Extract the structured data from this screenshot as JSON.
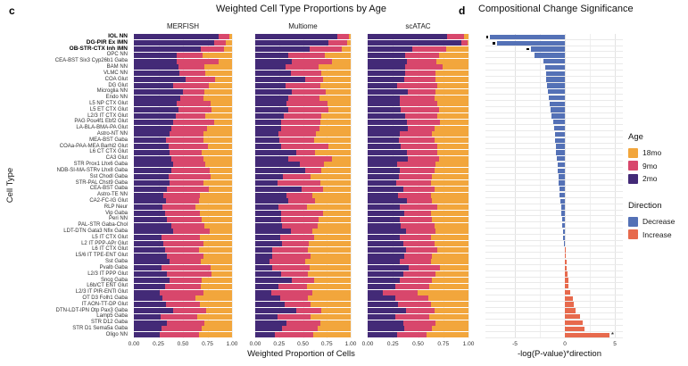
{
  "figure": {
    "panel_c_letter": "c",
    "panel_d_letter": "d",
    "panel_c_title": "Weighted Cell Type Proportions by Age",
    "panel_d_title": "Compositional Change Significance",
    "y_axis_label": "Cell Type",
    "panel_c_x_label": "Weighted Proportion of Cells",
    "panel_d_x_label": "-log(P-value)*direction"
  },
  "legend": {
    "age_title": "Age",
    "age_items": [
      {
        "label": "18mo",
        "color": "#f2a63c"
      },
      {
        "label": "9mo",
        "color": "#d8476c"
      },
      {
        "label": "2mo",
        "color": "#432a77"
      }
    ],
    "direction_title": "Direction",
    "direction_items": [
      {
        "label": "Decrease",
        "color": "#5471b6"
      },
      {
        "label": "Increase",
        "color": "#e76a4d"
      }
    ]
  },
  "colors": {
    "age_18mo": "#f2a63c",
    "age_9mo": "#d8476c",
    "age_2mo": "#432a77",
    "decrease": "#5471b6",
    "increase": "#e76a4d"
  },
  "chart_data": [
    {
      "type": "bar",
      "variant": "horizontal-stacked",
      "title": "Weighted Cell Type Proportions by Age",
      "xlabel": "Weighted Proportion of Cells",
      "ylabel": "Cell Type",
      "xlim": [
        0,
        1
      ],
      "x_ticks": [
        "0.00",
        "0.25",
        "0.50",
        "0.75",
        "1.00"
      ],
      "legend_position": "right",
      "categories": [
        "IOL NN",
        "DG-PIR Ex IMN",
        "OB-STR-CTX Inh IMN",
        "OPC NN",
        "CEA-BST Six3 Cyp26b1 Gaba",
        "BAM NN",
        "VLMC NN",
        "COA Glut",
        "DG Glut",
        "Microglia NN",
        "Endo NN",
        "L5 NP CTX Glut",
        "L5 ET CTX Glut",
        "L2/3 IT CTX Glut",
        "PAG Pou4f1 Ebf2 Glut",
        "LA-BLA-BMA-PA Glut",
        "Astro-NT NN",
        "MEA-BST Gaba",
        "COAa-PAA-MEA Barhl2 Glut",
        "L6 CT CTX Glut",
        "CA3 Glut",
        "STR Prox1 Lhx6 Gaba",
        "NDB-SI-MA-STRv Lhx8 Gaba",
        "Sst Chodl Gaba",
        "STR-PAL Chst9 Gaba",
        "CEA-BST Gaba",
        "Astro-TE NN",
        "CA2-FC-IG Glut",
        "RLP Neur",
        "Vip Gaba",
        "Peri NN",
        "PAL-STR Gaba-Chol",
        "LDT-DTN Gata3 Nfix Gaba",
        "L5 IT CTX Glut",
        "L2 IT PPP-APr Glut",
        "L6 IT CTX Glut",
        "L5/6 IT TPE-ENT Glut",
        "Sst Gaba",
        "Pvalb Gaba",
        "L2/3 IT PPP Glut",
        "Sncg Gaba",
        "L6b/CT ENT Glut",
        "L2/3 IT PIR-ENTl Glut",
        "OT D3 Folh1 Gaba",
        "IT AON-TT-DP Glut",
        "DTN-LDT-IPN Otp Pax3 Gaba",
        "Lamp5 Gaba",
        "STR D12 Gaba",
        "STR D1 Sema5a Gaba",
        "Oligo NN"
      ],
      "bold_categories": [
        "IOL NN",
        "DG-PIR Ex IMN",
        "OB-STR-CTX Inh IMN"
      ],
      "facets": [
        {
          "name": "MERFISH",
          "series": [
            {
              "name": "2mo",
              "values": [
                0.86,
                0.82,
                0.68,
                0.44,
                0.44,
                0.45,
                0.46,
                0.53,
                0.4,
                0.5,
                0.47,
                0.44,
                0.45,
                0.43,
                0.4,
                0.38,
                0.36,
                0.33,
                0.35,
                0.36,
                0.38,
                0.4,
                0.38,
                0.35,
                0.36,
                0.34,
                0.3,
                0.33,
                0.29,
                0.32,
                0.34,
                0.38,
                0.4,
                0.28,
                0.3,
                0.32,
                0.34,
                0.36,
                0.28,
                0.34,
                0.36,
                0.32,
                0.26,
                0.29,
                0.33,
                0.4,
                0.27,
                0.34,
                0.28,
                0.26
              ]
            },
            {
              "name": "9mo",
              "values": [
                0.11,
                0.12,
                0.24,
                0.26,
                0.42,
                0.27,
                0.27,
                0.3,
                0.36,
                0.22,
                0.24,
                0.34,
                0.34,
                0.3,
                0.42,
                0.37,
                0.35,
                0.38,
                0.4,
                0.33,
                0.33,
                0.33,
                0.39,
                0.43,
                0.35,
                0.42,
                0.37,
                0.33,
                0.34,
                0.35,
                0.35,
                0.34,
                0.37,
                0.39,
                0.41,
                0.34,
                0.37,
                0.32,
                0.5,
                0.45,
                0.33,
                0.36,
                0.45,
                0.34,
                0.34,
                0.34,
                0.38,
                0.38,
                0.41,
                0.4
              ]
            },
            {
              "name": "18mo",
              "values": [
                0.03,
                0.06,
                0.08,
                0.3,
                0.14,
                0.28,
                0.27,
                0.17,
                0.24,
                0.28,
                0.29,
                0.22,
                0.21,
                0.27,
                0.18,
                0.25,
                0.29,
                0.29,
                0.25,
                0.31,
                0.29,
                0.27,
                0.23,
                0.22,
                0.29,
                0.24,
                0.33,
                0.34,
                0.37,
                0.33,
                0.31,
                0.28,
                0.23,
                0.33,
                0.29,
                0.34,
                0.29,
                0.32,
                0.22,
                0.21,
                0.31,
                0.32,
                0.29,
                0.37,
                0.33,
                0.26,
                0.35,
                0.28,
                0.31,
                0.34
              ]
            }
          ]
        },
        {
          "name": "Multiome",
          "series": [
            {
              "name": "2mo",
              "values": [
                0.86,
                0.77,
                0.57,
                0.35,
                0.38,
                0.32,
                0.37,
                0.52,
                0.32,
                0.38,
                0.35,
                0.33,
                0.35,
                0.3,
                0.27,
                0.27,
                0.24,
                0.25,
                0.27,
                0.43,
                0.35,
                0.47,
                0.52,
                0.29,
                0.23,
                0.49,
                0.33,
                0.35,
                0.24,
                0.27,
                0.27,
                0.28,
                0.37,
                0.26,
                0.28,
                0.18,
                0.18,
                0.15,
                0.18,
                0.27,
                0.38,
                0.24,
                0.17,
                0.26,
                0.31,
                0.43,
                0.23,
                0.33,
                0.28,
                0.21
              ]
            },
            {
              "name": "9mo",
              "values": [
                0.12,
                0.19,
                0.34,
                0.38,
                0.42,
                0.34,
                0.32,
                0.19,
                0.36,
                0.36,
                0.32,
                0.43,
                0.42,
                0.39,
                0.41,
                0.4,
                0.4,
                0.37,
                0.5,
                0.2,
                0.45,
                0.25,
                0.17,
                0.29,
                0.45,
                0.22,
                0.27,
                0.28,
                0.3,
                0.44,
                0.39,
                0.37,
                0.23,
                0.36,
                0.28,
                0.37,
                0.4,
                0.37,
                0.39,
                0.28,
                0.24,
                0.3,
                0.43,
                0.29,
                0.27,
                0.26,
                0.35,
                0.35,
                0.37,
                0.4
              ]
            },
            {
              "name": "18mo",
              "values": [
                0.02,
                0.04,
                0.09,
                0.27,
                0.2,
                0.34,
                0.31,
                0.29,
                0.32,
                0.26,
                0.33,
                0.24,
                0.23,
                0.31,
                0.32,
                0.33,
                0.36,
                0.38,
                0.23,
                0.37,
                0.2,
                0.28,
                0.31,
                0.42,
                0.32,
                0.29,
                0.4,
                0.37,
                0.46,
                0.29,
                0.34,
                0.35,
                0.4,
                0.38,
                0.44,
                0.45,
                0.42,
                0.48,
                0.43,
                0.45,
                0.38,
                0.46,
                0.4,
                0.45,
                0.42,
                0.31,
                0.42,
                0.32,
                0.35,
                0.39
              ]
            }
          ]
        },
        {
          "name": "scATAC",
          "series": [
            {
              "name": "2mo",
              "values": [
                0.79,
                0.93,
                0.44,
                0.37,
                0.39,
                0.37,
                0.37,
                0.36,
                0.29,
                0.4,
                0.32,
                0.32,
                0.33,
                0.37,
                0.39,
                0.4,
                0.32,
                0.31,
                0.33,
                0.39,
                0.4,
                0.29,
                0.32,
                0.31,
                0.28,
                0.35,
                0.3,
                0.39,
                0.32,
                0.36,
                0.32,
                0.33,
                0.38,
                0.32,
                0.35,
                0.38,
                0.36,
                0.32,
                0.41,
                0.35,
                0.32,
                0.27,
                0.15,
                0.27,
                0.3,
                0.38,
                0.27,
                0.35,
                0.36,
                0.29
              ]
            },
            {
              "name": "9mo",
              "values": [
                0.17,
                0.06,
                0.34,
                0.34,
                0.29,
                0.37,
                0.3,
                0.31,
                0.4,
                0.27,
                0.34,
                0.37,
                0.38,
                0.32,
                0.33,
                0.26,
                0.32,
                0.35,
                0.36,
                0.3,
                0.31,
                0.38,
                0.34,
                0.33,
                0.35,
                0.31,
                0.33,
                0.25,
                0.37,
                0.27,
                0.32,
                0.33,
                0.29,
                0.31,
                0.31,
                0.31,
                0.28,
                0.31,
                0.31,
                0.32,
                0.32,
                0.34,
                0.35,
                0.33,
                0.33,
                0.28,
                0.34,
                0.32,
                0.28,
                0.29
              ]
            },
            {
              "name": "18mo",
              "values": [
                0.04,
                0.01,
                0.22,
                0.29,
                0.32,
                0.26,
                0.33,
                0.33,
                0.31,
                0.33,
                0.34,
                0.31,
                0.29,
                0.31,
                0.28,
                0.34,
                0.36,
                0.34,
                0.31,
                0.31,
                0.29,
                0.33,
                0.34,
                0.36,
                0.37,
                0.34,
                0.37,
                0.36,
                0.31,
                0.37,
                0.36,
                0.34,
                0.33,
                0.37,
                0.34,
                0.31,
                0.36,
                0.37,
                0.28,
                0.33,
                0.36,
                0.39,
                0.5,
                0.4,
                0.37,
                0.34,
                0.39,
                0.33,
                0.36,
                0.42
              ]
            }
          ]
        }
      ]
    },
    {
      "type": "bar",
      "variant": "horizontal-diverging",
      "title": "Compositional Change Significance",
      "xlabel": "-log(P-value)*direction",
      "xlim": [
        -8,
        5.8
      ],
      "x_ticks": [
        -5,
        0,
        5
      ],
      "categories": [
        "IOL NN",
        "DG-PIR Ex IMN",
        "OB-STR-CTX Inh IMN",
        "OPC NN",
        "CEA-BST Six3 Cyp26b1 Gaba",
        "BAM NN",
        "VLMC NN",
        "COA Glut",
        "DG Glut",
        "Microglia NN",
        "Endo NN",
        "L5 NP CTX Glut",
        "L5 ET CTX Glut",
        "L2/3 IT CTX Glut",
        "PAG Pou4f1 Ebf2 Glut",
        "LA-BLA-BMA-PA Glut",
        "Astro-NT NN",
        "MEA-BST Gaba",
        "COAa-PAA-MEA Barhl2 Glut",
        "L6 CT CTX Glut",
        "CA3 Glut",
        "STR Prox1 Lhx6 Gaba",
        "NDB-SI-MA-STRv Lhx8 Gaba",
        "Sst Chodl Gaba",
        "STR-PAL Chst9 Gaba",
        "CEA-BST Gaba",
        "Astro-TE NN",
        "CA2-FC-IG Glut",
        "RLP Neur",
        "Vip Gaba",
        "Peri NN",
        "PAL-STR Gaba-Chol",
        "LDT-DTN Gata3 Nfix Gaba",
        "L5 IT CTX Glut",
        "L2 IT PPP-APr Glut",
        "L6 IT CTX Glut",
        "L5/6 IT TPE-ENT Glut",
        "Sst Gaba",
        "Pvalb Gaba",
        "L2/3 IT PPP Glut",
        "Sncg Gaba",
        "L6b/CT ENT Glut",
        "L2/3 IT PIR-ENTl Glut",
        "OT D3 Folh1 Gaba",
        "IT AON-TT-DP Glut",
        "DTN-LDT-IPN Otp Pax3 Gaba",
        "Lamp5 Gaba",
        "STR D12 Gaba",
        "STR D1 Sema5a Gaba",
        "Oligo NN"
      ],
      "values": [
        -7.5,
        -6.8,
        -3.4,
        -3.0,
        -2.1,
        -2.0,
        -1.9,
        -1.85,
        -1.8,
        -1.7,
        -1.6,
        -1.5,
        -1.4,
        -1.3,
        -1.2,
        -1.1,
        -1.0,
        -0.95,
        -0.9,
        -0.85,
        -0.8,
        -0.75,
        -0.7,
        -0.65,
        -0.6,
        -0.55,
        -0.5,
        -0.45,
        -0.4,
        -0.35,
        -0.3,
        -0.25,
        -0.2,
        -0.15,
        -0.1,
        0.05,
        0.1,
        0.15,
        0.2,
        0.3,
        0.35,
        0.4,
        0.5,
        0.8,
        0.9,
        1.1,
        1.5,
        1.8,
        2.0,
        4.5
      ],
      "direction_colors": {
        "negative": "Decrease",
        "positive": "Increase"
      },
      "significance_markers": [
        {
          "index": 0,
          "type": "dot"
        },
        {
          "index": 1,
          "type": "dot"
        },
        {
          "index": 2,
          "type": "dot"
        },
        {
          "index": 49,
          "type": "asterisk"
        }
      ]
    }
  ]
}
